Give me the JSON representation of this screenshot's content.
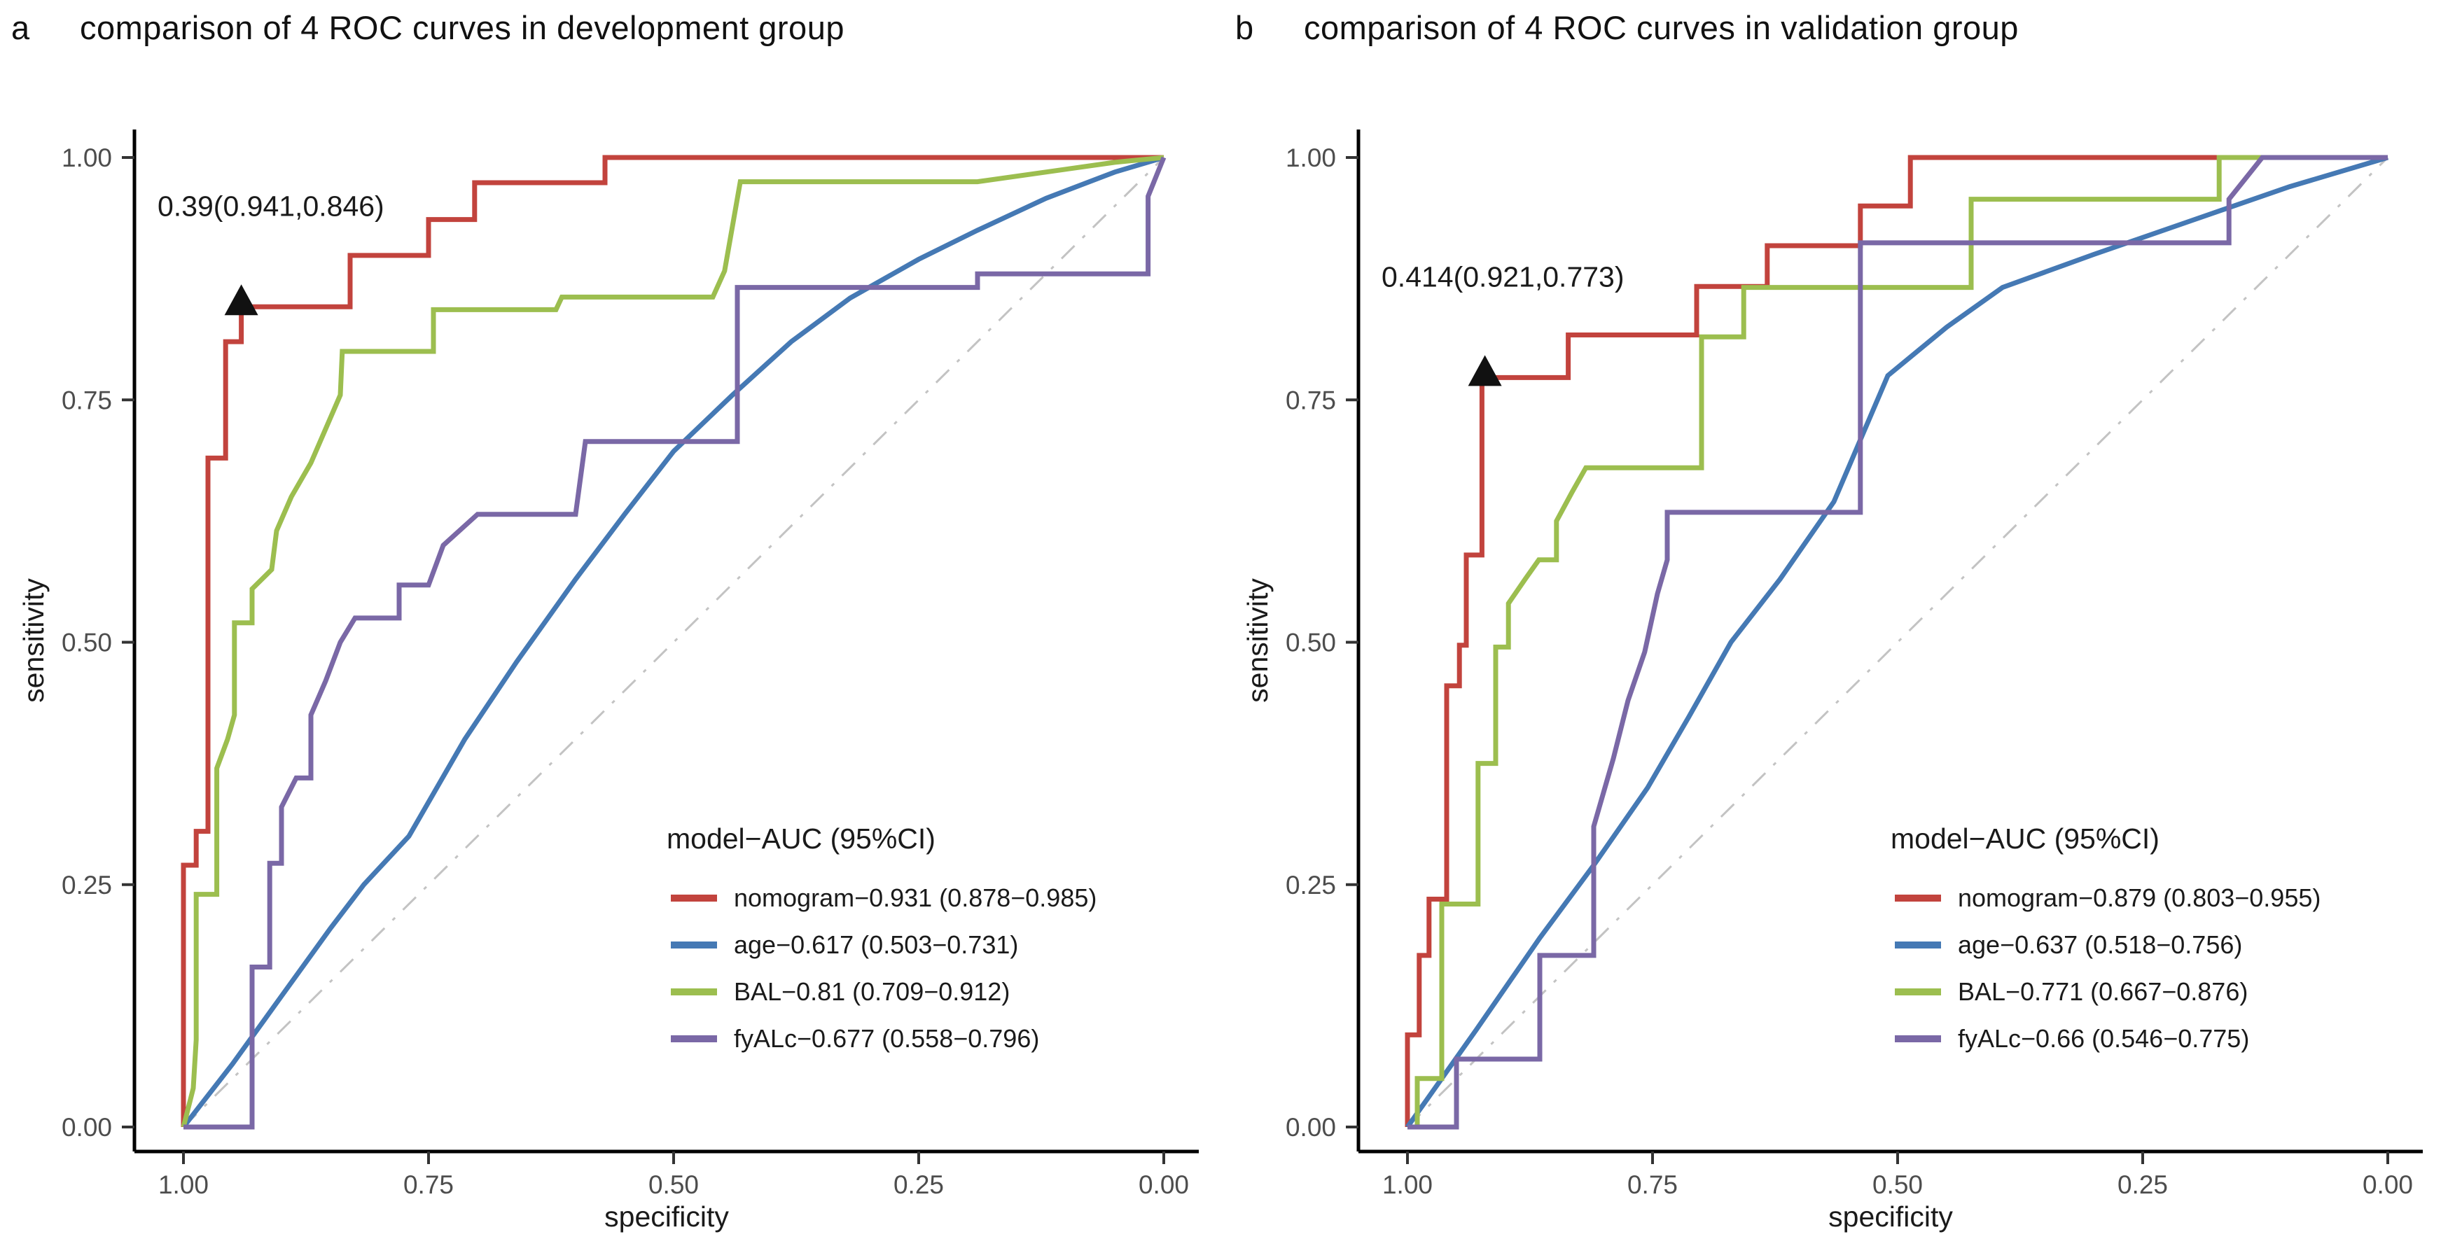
{
  "figure": {
    "background": "#ffffff",
    "axis_color": "#000000",
    "tick_label_color": "#4d4d4d",
    "text_color": "#1a1a1a",
    "marker_color": "#111111"
  },
  "chart_data": [
    {
      "type": "line",
      "panel_label": "a",
      "title": "comparison of 4 ROC curves in development group",
      "xlabel": "specificity",
      "ylabel": "sensitivity",
      "x_axis_reversed": true,
      "xlim": [
        1.0,
        0.0
      ],
      "ylim": [
        0.0,
        1.0
      ],
      "grid": false,
      "x_tick_values": [
        1.0,
        0.75,
        0.5,
        0.25,
        0.0
      ],
      "x_tick_labels": [
        "1.00",
        "0.75",
        "0.50",
        "0.25",
        "0.00"
      ],
      "y_tick_values": [
        0.0,
        0.25,
        0.5,
        0.75,
        1.0
      ],
      "y_tick_labels": [
        "0.00",
        "0.25",
        "0.50",
        "0.75",
        "1.00"
      ],
      "diagonal": {
        "name": "chance-line",
        "color": "#C3C3C3",
        "style": "dash-dot"
      },
      "annotation": {
        "text": "0.39(0.941,0.846)",
        "x": 0.941,
        "y": 0.846
      },
      "legend": {
        "title": "model−AUC (95%CI)",
        "position": "lower-right"
      },
      "series": [
        {
          "name": "nomogram",
          "auc_label": "nomogram−0.931 (0.878−0.985)",
          "color": "#C2433D",
          "points": [
            [
              1,
              0
            ],
            [
              1,
              0.27
            ],
            [
              0.987,
              0.27
            ],
            [
              0.987,
              0.305
            ],
            [
              0.975,
              0.305
            ],
            [
              0.975,
              0.69
            ],
            [
              0.957,
              0.69
            ],
            [
              0.957,
              0.81
            ],
            [
              0.941,
              0.81
            ],
            [
              0.941,
              0.846
            ],
            [
              0.83,
              0.846
            ],
            [
              0.83,
              0.899
            ],
            [
              0.75,
              0.899
            ],
            [
              0.75,
              0.936
            ],
            [
              0.703,
              0.936
            ],
            [
              0.703,
              0.974
            ],
            [
              0.57,
              0.974
            ],
            [
              0.57,
              1
            ],
            [
              0,
              1
            ]
          ]
        },
        {
          "name": "age",
          "auc_label": "age−0.617 (0.503−0.731)",
          "color": "#4579B4",
          "points": [
            [
              1,
              0
            ],
            [
              0.95,
              0.065
            ],
            [
              0.9,
              0.135
            ],
            [
              0.85,
              0.205
            ],
            [
              0.816,
              0.25
            ],
            [
              0.77,
              0.3
            ],
            [
              0.713,
              0.4
            ],
            [
              0.66,
              0.48
            ],
            [
              0.6,
              0.565
            ],
            [
              0.55,
              0.632
            ],
            [
              0.5,
              0.697
            ],
            [
              0.44,
              0.755
            ],
            [
              0.38,
              0.81
            ],
            [
              0.32,
              0.855
            ],
            [
              0.25,
              0.895
            ],
            [
              0.19,
              0.925
            ],
            [
              0.12,
              0.958
            ],
            [
              0.05,
              0.985
            ],
            [
              0,
              1
            ]
          ]
        },
        {
          "name": "BAL",
          "auc_label": "BAL−0.81 (0.709−0.912)",
          "color": "#9CBE4F",
          "points": [
            [
              1,
              0
            ],
            [
              0.99,
              0.04
            ],
            [
              0.987,
              0.09
            ],
            [
              0.987,
              0.24
            ],
            [
              0.966,
              0.24
            ],
            [
              0.966,
              0.37
            ],
            [
              0.955,
              0.4
            ],
            [
              0.948,
              0.425
            ],
            [
              0.948,
              0.52
            ],
            [
              0.93,
              0.52
            ],
            [
              0.93,
              0.555
            ],
            [
              0.91,
              0.575
            ],
            [
              0.905,
              0.615
            ],
            [
              0.89,
              0.65
            ],
            [
              0.87,
              0.685
            ],
            [
              0.855,
              0.72
            ],
            [
              0.84,
              0.755
            ],
            [
              0.838,
              0.8
            ],
            [
              0.745,
              0.8
            ],
            [
              0.745,
              0.843
            ],
            [
              0.62,
              0.843
            ],
            [
              0.614,
              0.856
            ],
            [
              0.46,
              0.856
            ],
            [
              0.448,
              0.883
            ],
            [
              0.432,
              0.975
            ],
            [
              0.19,
              0.975
            ],
            [
              0.05,
              0.995
            ],
            [
              0,
              1
            ]
          ]
        },
        {
          "name": "fyALc",
          "auc_label": "fyALc−0.677 (0.558−0.796)",
          "color": "#7A68A6",
          "points": [
            [
              1,
              0
            ],
            [
              0.93,
              0
            ],
            [
              0.93,
              0.165
            ],
            [
              0.912,
              0.165
            ],
            [
              0.912,
              0.272
            ],
            [
              0.9,
              0.272
            ],
            [
              0.9,
              0.33
            ],
            [
              0.885,
              0.36
            ],
            [
              0.87,
              0.36
            ],
            [
              0.87,
              0.425
            ],
            [
              0.855,
              0.46
            ],
            [
              0.84,
              0.5
            ],
            [
              0.825,
              0.525
            ],
            [
              0.78,
              0.525
            ],
            [
              0.78,
              0.559
            ],
            [
              0.75,
              0.559
            ],
            [
              0.735,
              0.6
            ],
            [
              0.7,
              0.632
            ],
            [
              0.6,
              0.632
            ],
            [
              0.59,
              0.707
            ],
            [
              0.435,
              0.707
            ],
            [
              0.435,
              0.866
            ],
            [
              0.19,
              0.866
            ],
            [
              0.19,
              0.88
            ],
            [
              0.016,
              0.88
            ],
            [
              0.016,
              0.96
            ],
            [
              0,
              1
            ]
          ]
        }
      ]
    },
    {
      "type": "line",
      "panel_label": "b",
      "title": "comparison of 4 ROC curves in validation group",
      "xlabel": "specificity",
      "ylabel": "sensitivity",
      "x_axis_reversed": true,
      "xlim": [
        1.0,
        0.0
      ],
      "ylim": [
        0.0,
        1.0
      ],
      "grid": false,
      "x_tick_values": [
        1.0,
        0.75,
        0.5,
        0.25,
        0.0
      ],
      "x_tick_labels": [
        "1.00",
        "0.75",
        "0.50",
        "0.25",
        "0.00"
      ],
      "y_tick_values": [
        0.0,
        0.25,
        0.5,
        0.75,
        1.0
      ],
      "y_tick_labels": [
        "0.00",
        "0.25",
        "0.50",
        "0.75",
        "1.00"
      ],
      "diagonal": {
        "name": "chance-line",
        "color": "#C3C3C3",
        "style": "dash-dot"
      },
      "annotation": {
        "text": "0.414(0.921,0.773)",
        "x": 0.921,
        "y": 0.773
      },
      "legend": {
        "title": "model−AUC (95%CI)",
        "position": "lower-right"
      },
      "series": [
        {
          "name": "nomogram",
          "auc_label": "nomogram−0.879 (0.803−0.955)",
          "color": "#C2433D",
          "points": [
            [
              1,
              0
            ],
            [
              1,
              0.095
            ],
            [
              0.988,
              0.095
            ],
            [
              0.988,
              0.177
            ],
            [
              0.978,
              0.177
            ],
            [
              0.978,
              0.235
            ],
            [
              0.96,
              0.235
            ],
            [
              0.96,
              0.455
            ],
            [
              0.947,
              0.455
            ],
            [
              0.947,
              0.497
            ],
            [
              0.94,
              0.497
            ],
            [
              0.94,
              0.59
            ],
            [
              0.924,
              0.59
            ],
            [
              0.924,
              0.773
            ],
            [
              0.836,
              0.773
            ],
            [
              0.836,
              0.817
            ],
            [
              0.705,
              0.817
            ],
            [
              0.705,
              0.867
            ],
            [
              0.633,
              0.867
            ],
            [
              0.633,
              0.909
            ],
            [
              0.538,
              0.909
            ],
            [
              0.538,
              0.95
            ],
            [
              0.487,
              0.95
            ],
            [
              0.487,
              1
            ],
            [
              0,
              1
            ]
          ]
        },
        {
          "name": "age",
          "auc_label": "age−0.637 (0.518−0.756)",
          "color": "#4579B4",
          "points": [
            [
              1,
              0
            ],
            [
              0.93,
              0.1
            ],
            [
              0.865,
              0.195
            ],
            [
              0.81,
              0.27
            ],
            [
              0.755,
              0.35
            ],
            [
              0.713,
              0.423
            ],
            [
              0.67,
              0.5
            ],
            [
              0.62,
              0.565
            ],
            [
              0.565,
              0.645
            ],
            [
              0.51,
              0.775
            ],
            [
              0.45,
              0.825
            ],
            [
              0.393,
              0.866
            ],
            [
              0.3,
              0.9
            ],
            [
              0.2,
              0.935
            ],
            [
              0.1,
              0.97
            ],
            [
              0,
              1
            ]
          ]
        },
        {
          "name": "BAL",
          "auc_label": "BAL−0.771 (0.667−0.876)",
          "color": "#9CBE4F",
          "points": [
            [
              1,
              0
            ],
            [
              0.99,
              0
            ],
            [
              0.99,
              0.05
            ],
            [
              0.965,
              0.05
            ],
            [
              0.965,
              0.23
            ],
            [
              0.928,
              0.23
            ],
            [
              0.928,
              0.375
            ],
            [
              0.91,
              0.375
            ],
            [
              0.91,
              0.495
            ],
            [
              0.897,
              0.495
            ],
            [
              0.897,
              0.54
            ],
            [
              0.88,
              0.565
            ],
            [
              0.866,
              0.585
            ],
            [
              0.848,
              0.585
            ],
            [
              0.848,
              0.625
            ],
            [
              0.832,
              0.655
            ],
            [
              0.818,
              0.68
            ],
            [
              0.7,
              0.68
            ],
            [
              0.7,
              0.815
            ],
            [
              0.657,
              0.815
            ],
            [
              0.657,
              0.866
            ],
            [
              0.425,
              0.866
            ],
            [
              0.425,
              0.957
            ],
            [
              0.172,
              0.957
            ],
            [
              0.172,
              1
            ],
            [
              0,
              1
            ]
          ]
        },
        {
          "name": "fyALc",
          "auc_label": "fyALc−0.66 (0.546−0.775)",
          "color": "#7A68A6",
          "points": [
            [
              1,
              0
            ],
            [
              0.95,
              0
            ],
            [
              0.95,
              0.07
            ],
            [
              0.865,
              0.07
            ],
            [
              0.865,
              0.177
            ],
            [
              0.81,
              0.177
            ],
            [
              0.81,
              0.31
            ],
            [
              0.79,
              0.38
            ],
            [
              0.775,
              0.44
            ],
            [
              0.758,
              0.49
            ],
            [
              0.745,
              0.55
            ],
            [
              0.735,
              0.585
            ],
            [
              0.735,
              0.634
            ],
            [
              0.538,
              0.634
            ],
            [
              0.538,
              0.912
            ],
            [
              0.162,
              0.912
            ],
            [
              0.162,
              0.957
            ],
            [
              0.128,
              1
            ],
            [
              0,
              1
            ]
          ]
        }
      ]
    }
  ]
}
